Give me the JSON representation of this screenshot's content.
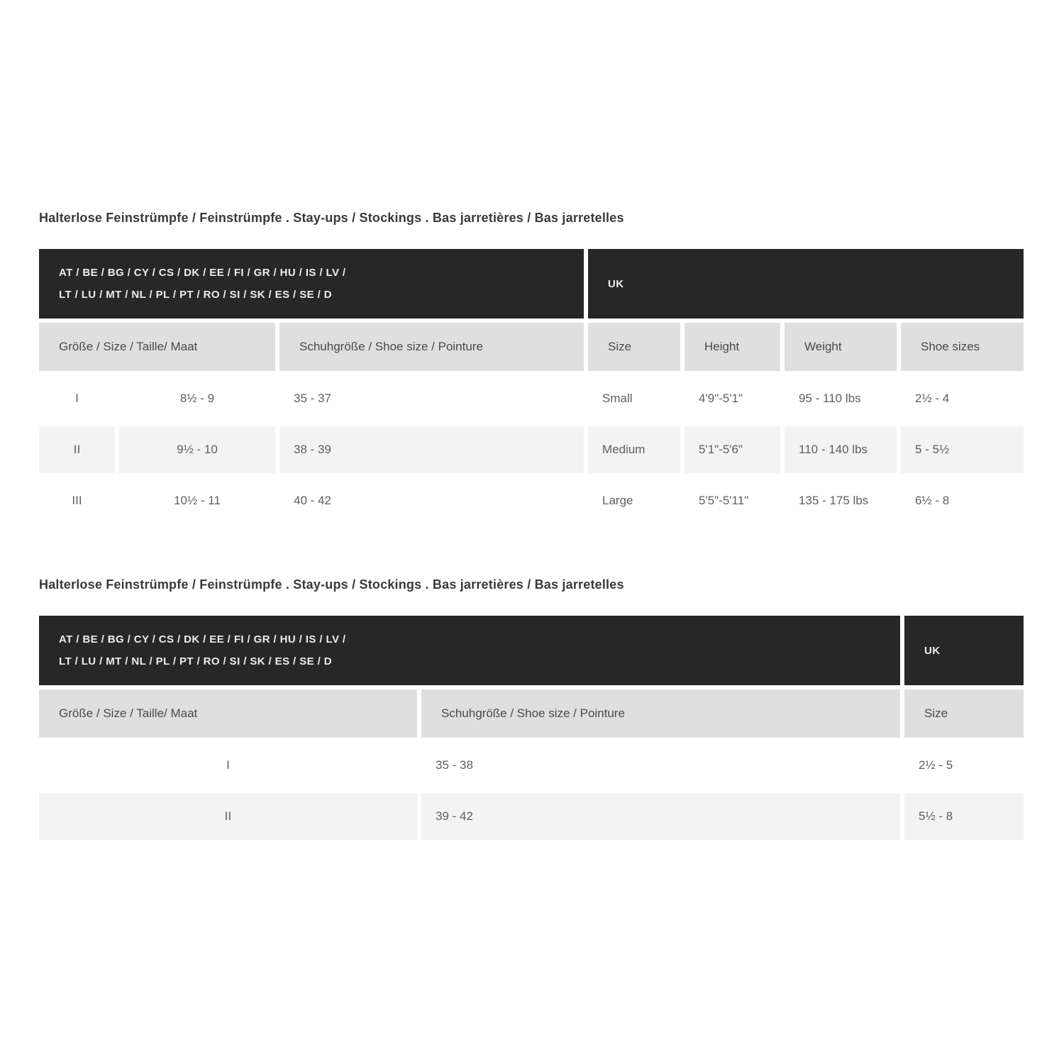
{
  "theme": {
    "dark_header_bg": "#272727",
    "dark_header_text": "#ededed",
    "column_header_bg": "#dfdfdf",
    "stripe_row_bg": "#f3f3f3",
    "text_color": "#5e5e5e",
    "title_color": "#3a3a3a"
  },
  "tables": [
    {
      "title": "Halterlose Feinstrümpfe / Feinstrümpfe . Stay-ups / Stockings . Bas jarretières / Bas jarretelles",
      "region_header": {
        "eu_line1": "AT / BE / BG / CY / CS / DK / EE / FI / GR / HU / IS / LV /",
        "eu_line2": "LT / LU / MT / NL / PL / PT / RO / SI / SK / ES / SE / D",
        "uk": "UK"
      },
      "columns": {
        "size_label": "Größe / Size / Taille/ Maat",
        "shoe_label": "Schuhgröße / Shoe size / Pointure",
        "uk_size": "Size",
        "height": "Height",
        "weight": "Weight",
        "shoe_sizes": "Shoe sizes"
      },
      "rows": [
        {
          "numeral": "I",
          "eu_size": "8½ - 9",
          "eu_shoe": "35 - 37",
          "uk_size": "Small",
          "height": "4'9\"-5'1\"",
          "weight": "95 - 110 lbs",
          "uk_shoe": "2½ - 4"
        },
        {
          "numeral": "II",
          "eu_size": "9½ - 10",
          "eu_shoe": "38 - 39",
          "uk_size": "Medium",
          "height": "5'1\"-5'6\"",
          "weight": "110 - 140 lbs",
          "uk_shoe": "5 - 5½"
        },
        {
          "numeral": "III",
          "eu_size": "10½ - 11",
          "eu_shoe": "40 - 42",
          "uk_size": "Large",
          "height": "5'5\"-5'11\"",
          "weight": "135 - 175 lbs",
          "uk_shoe": "6½ - 8"
        }
      ]
    },
    {
      "title": "Halterlose Feinstrümpfe / Feinstrümpfe . Stay-ups / Stockings . Bas jarretières / Bas jarretelles",
      "region_header": {
        "eu_line1": "AT / BE / BG / CY / CS / DK / EE / FI / GR / HU / IS / LV /",
        "eu_line2": "LT / LU / MT / NL / PL / PT / RO / SI / SK / ES / SE / D",
        "uk": "UK"
      },
      "columns": {
        "size_label": "Größe / Size / Taille/ Maat",
        "shoe_label": "Schuhgröße / Shoe size / Pointure",
        "uk_size": "Size"
      },
      "rows": [
        {
          "numeral": "I",
          "eu_shoe": "35 - 38",
          "uk_shoe": "2½ - 5"
        },
        {
          "numeral": "II",
          "eu_shoe": "39 - 42",
          "uk_shoe": "5½ - 8"
        }
      ]
    }
  ]
}
